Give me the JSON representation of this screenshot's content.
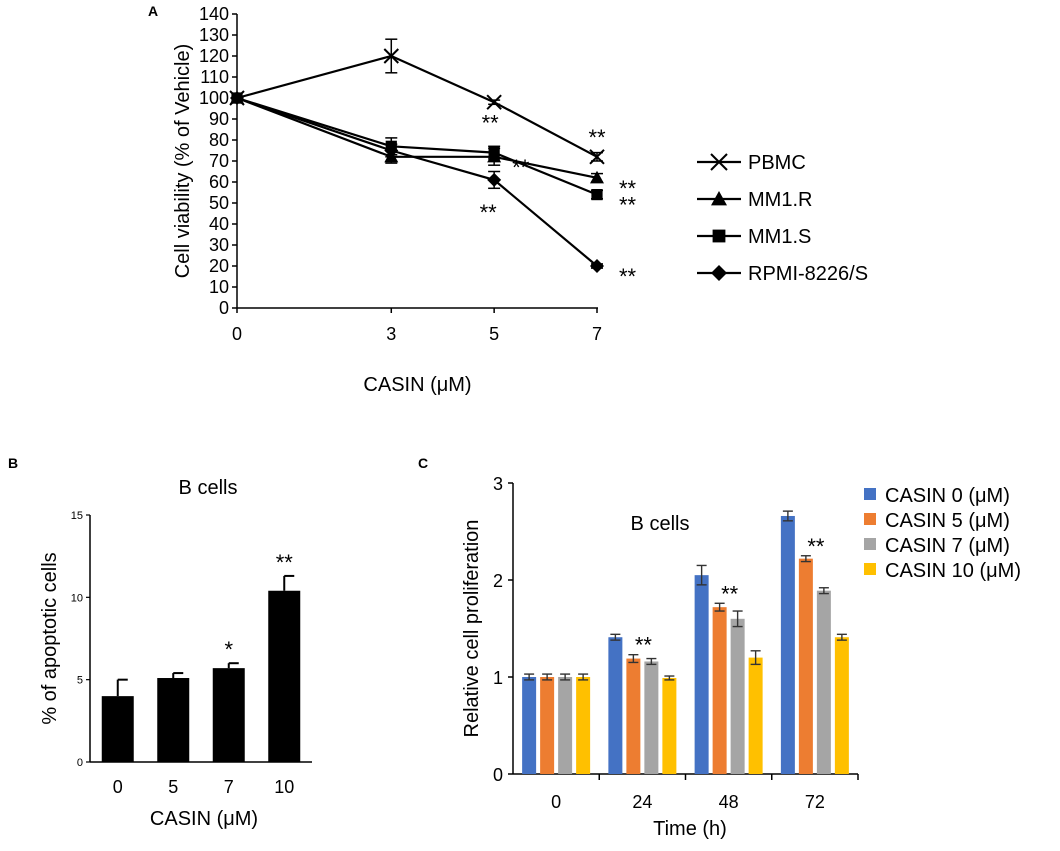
{
  "chart_data": [
    {
      "panel": "A",
      "type": "line",
      "xlabel": "CASIN (μM)",
      "ylabel": "Cell viability (% of Vehicle)",
      "x": [
        0,
        3,
        5,
        7
      ],
      "xticks": [
        "0",
        "3",
        "5",
        "7"
      ],
      "ylim": [
        0,
        140
      ],
      "yticks": [
        0,
        10,
        20,
        30,
        40,
        50,
        60,
        70,
        80,
        90,
        100,
        110,
        120,
        130,
        140
      ],
      "grid": false,
      "legend_position": "right",
      "series": [
        {
          "name": "PBMC",
          "marker": "x",
          "values": [
            100,
            120,
            98,
            72
          ],
          "errors": [
            0,
            8,
            1,
            2
          ],
          "stars": [
            "",
            "",
            "",
            "**"
          ]
        },
        {
          "name": "MM1.R",
          "marker": "triangle",
          "values": [
            100,
            72,
            72,
            62
          ],
          "errors": [
            0,
            3,
            4,
            2
          ],
          "stars": [
            "",
            "",
            "**",
            "**"
          ]
        },
        {
          "name": "MM1.S",
          "marker": "square",
          "values": [
            100,
            77,
            74,
            54
          ],
          "errors": [
            0,
            4,
            3,
            2
          ],
          "stars": [
            "",
            "",
            "**",
            "**"
          ]
        },
        {
          "name": "RPMI-8226/S",
          "marker": "diamond",
          "values": [
            100,
            75,
            61,
            20
          ],
          "errors": [
            0,
            3,
            4,
            1
          ],
          "stars": [
            "",
            "",
            "**",
            "**"
          ]
        }
      ]
    },
    {
      "panel": "B",
      "type": "bar",
      "title": "B cells",
      "xlabel": "CASIN (μM)",
      "ylabel": "% of apoptotic cells",
      "categories": [
        "0",
        "5",
        "7",
        "10"
      ],
      "values": [
        4.0,
        5.1,
        5.7,
        10.4
      ],
      "errors": [
        1.0,
        0.3,
        0.3,
        0.9
      ],
      "stars": [
        "",
        "",
        "*",
        "**"
      ],
      "ylim": [
        0,
        15
      ],
      "yticks": [
        0,
        5,
        10,
        15
      ],
      "color": "#000000"
    },
    {
      "panel": "C",
      "type": "bar",
      "title": "B cells",
      "xlabel": "Time (h)",
      "ylabel": "Relative cell proliferation",
      "categories": [
        "0",
        "24",
        "48",
        "72"
      ],
      "ylim": [
        0,
        3
      ],
      "yticks": [
        0,
        1,
        2,
        3
      ],
      "legend_position": "right",
      "series": [
        {
          "name": "CASIN 0 (μM)",
          "color": "#4472c4",
          "values": [
            1.0,
            1.41,
            2.05,
            2.66
          ],
          "errors": [
            0.03,
            0.03,
            0.1,
            0.05
          ],
          "stars": [
            "",
            "",
            "",
            ""
          ]
        },
        {
          "name": "CASIN 5 (μM)",
          "color": "#ed7d31",
          "values": [
            1.0,
            1.19,
            1.72,
            2.22
          ],
          "errors": [
            0.03,
            0.04,
            0.04,
            0.03
          ],
          "stars": [
            "",
            "**",
            "**",
            "**"
          ]
        },
        {
          "name": "CASIN 7 (μM)",
          "color": "#a5a5a5",
          "values": [
            1.0,
            1.16,
            1.6,
            1.89
          ],
          "errors": [
            0.03,
            0.03,
            0.08,
            0.03
          ],
          "stars": [
            "",
            "",
            "",
            ""
          ]
        },
        {
          "name": "CASIN 10 (μM)",
          "color": "#ffc000",
          "values": [
            1.0,
            0.99,
            1.2,
            1.41
          ],
          "errors": [
            0.03,
            0.02,
            0.07,
            0.03
          ],
          "stars": [
            "",
            "",
            "",
            ""
          ]
        }
      ]
    }
  ]
}
